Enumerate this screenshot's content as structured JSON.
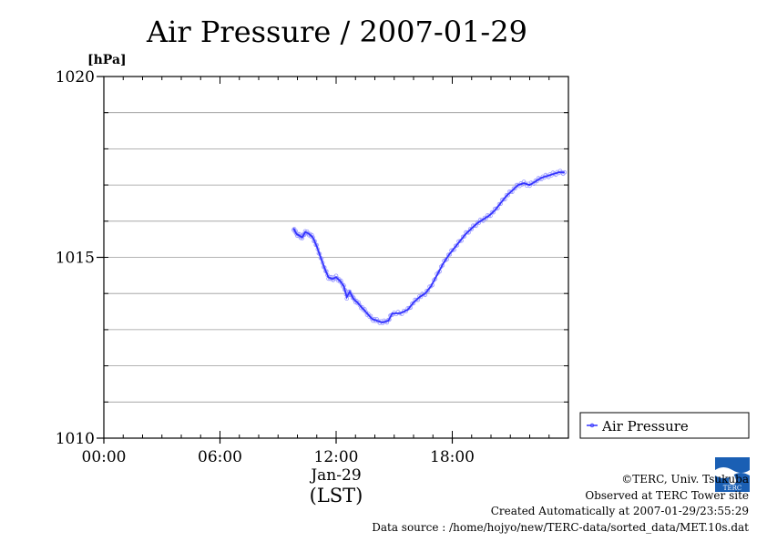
{
  "chart_data": {
    "type": "line",
    "title": "Air Pressure / 2007-01-29",
    "ylabel": "[hPa]",
    "ylim": [
      1010,
      1020
    ],
    "yticks": [
      1010,
      1015,
      1020
    ],
    "y_gridlines": [
      1011,
      1012,
      1013,
      1014,
      1015,
      1016,
      1017,
      1018,
      1019
    ],
    "xlim_hours": [
      0,
      24
    ],
    "xticks": [
      {
        "hour": 0,
        "label": "00:00"
      },
      {
        "hour": 6,
        "label": "06:00"
      },
      {
        "hour": 12,
        "label": "12:00"
      },
      {
        "hour": 18,
        "label": "18:00"
      }
    ],
    "xdate_label": "Jan-29",
    "xunit_label": "(LST)",
    "legend": {
      "position": "right",
      "entries": [
        "Air Pressure"
      ]
    },
    "series": [
      {
        "name": "Air Pressure",
        "color": "#3333ff",
        "points": [
          [
            9.8,
            1015.8
          ],
          [
            9.95,
            1015.65
          ],
          [
            10.1,
            1015.6
          ],
          [
            10.25,
            1015.55
          ],
          [
            10.4,
            1015.7
          ],
          [
            10.6,
            1015.65
          ],
          [
            10.8,
            1015.55
          ],
          [
            11.0,
            1015.3
          ],
          [
            11.2,
            1015.0
          ],
          [
            11.4,
            1014.7
          ],
          [
            11.6,
            1014.45
          ],
          [
            11.8,
            1014.4
          ],
          [
            12.0,
            1014.45
          ],
          [
            12.2,
            1014.35
          ],
          [
            12.4,
            1014.2
          ],
          [
            12.55,
            1013.9
          ],
          [
            12.7,
            1014.05
          ],
          [
            12.9,
            1013.85
          ],
          [
            13.1,
            1013.75
          ],
          [
            13.35,
            1013.6
          ],
          [
            13.6,
            1013.45
          ],
          [
            13.85,
            1013.3
          ],
          [
            14.1,
            1013.25
          ],
          [
            14.4,
            1013.2
          ],
          [
            14.7,
            1013.25
          ],
          [
            14.9,
            1013.45
          ],
          [
            15.3,
            1013.45
          ],
          [
            15.7,
            1013.55
          ],
          [
            16.0,
            1013.75
          ],
          [
            16.3,
            1013.9
          ],
          [
            16.6,
            1014.0
          ],
          [
            16.9,
            1014.2
          ],
          [
            17.2,
            1014.5
          ],
          [
            17.5,
            1014.8
          ],
          [
            17.8,
            1015.05
          ],
          [
            18.1,
            1015.25
          ],
          [
            18.4,
            1015.45
          ],
          [
            18.7,
            1015.65
          ],
          [
            19.0,
            1015.8
          ],
          [
            19.3,
            1015.95
          ],
          [
            19.6,
            1016.05
          ],
          [
            19.9,
            1016.15
          ],
          [
            20.2,
            1016.3
          ],
          [
            20.5,
            1016.5
          ],
          [
            20.8,
            1016.7
          ],
          [
            21.1,
            1016.85
          ],
          [
            21.4,
            1017.0
          ],
          [
            21.7,
            1017.05
          ],
          [
            22.0,
            1017.0
          ],
          [
            22.3,
            1017.1
          ],
          [
            22.6,
            1017.2
          ],
          [
            22.9,
            1017.25
          ],
          [
            23.2,
            1017.3
          ],
          [
            23.5,
            1017.35
          ],
          [
            23.8,
            1017.35
          ]
        ]
      }
    ]
  },
  "credits": {
    "copyright": "©TERC, Univ. Tsukuba",
    "site": "Observed at TERC Tower site",
    "created": "Created Automatically at 2007-01-29/23:55:29",
    "source": "Data source : /home/hojyo/new/TERC-data/sorted_data/MET.10s.dat"
  },
  "logo": {
    "color": "#1a5fb4",
    "icon": "terc-logo-icon",
    "text": "TERC"
  }
}
